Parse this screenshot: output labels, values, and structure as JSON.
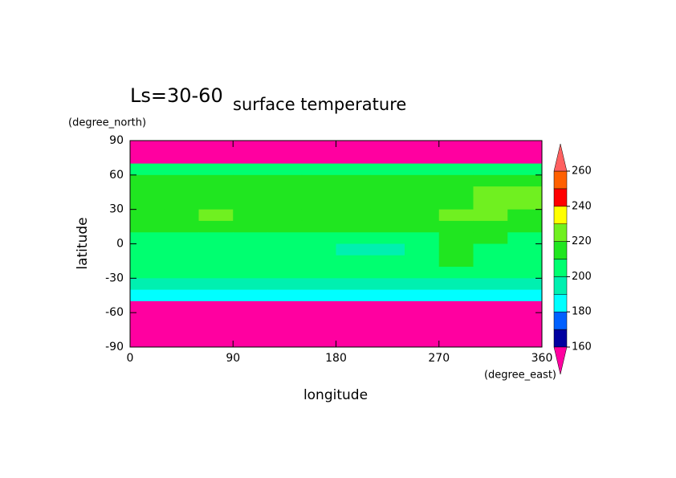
{
  "chart_data": {
    "type": "contour",
    "title": "surface temperature",
    "annotation": "Ls=30-60",
    "xlabel": "longitude",
    "ylabel": "latitude",
    "xunit": "(degree_east)",
    "yunit": "(degree_north)",
    "x": [
      15,
      45,
      75,
      105,
      135,
      165,
      195,
      225,
      255,
      285,
      315,
      345
    ],
    "y": [
      85,
      75,
      65,
      55,
      45,
      35,
      25,
      15,
      5,
      -5,
      -15,
      -25,
      -35,
      -45,
      -55,
      -65,
      -75,
      -85
    ],
    "values": [
      [
        150,
        150,
        150,
        150,
        150,
        150,
        150,
        150,
        150,
        150,
        150,
        150
      ],
      [
        155,
        155,
        155,
        155,
        155,
        155,
        155,
        155,
        155,
        155,
        155,
        155
      ],
      [
        205,
        205,
        205,
        205,
        205,
        205,
        205,
        205,
        205,
        205,
        205,
        205
      ],
      [
        212,
        212,
        215,
        212,
        212,
        212,
        212,
        212,
        212,
        212,
        215,
        212
      ],
      [
        212,
        212,
        212,
        212,
        212,
        212,
        212,
        212,
        212,
        212,
        222,
        222
      ],
      [
        212,
        215,
        215,
        212,
        212,
        212,
        212,
        212,
        212,
        212,
        222,
        222
      ],
      [
        212,
        215,
        225,
        212,
        212,
        212,
        212,
        212,
        212,
        222,
        222,
        212
      ],
      [
        215,
        215,
        215,
        215,
        212,
        212,
        212,
        212,
        212,
        215,
        215,
        215
      ],
      [
        208,
        208,
        208,
        208,
        208,
        208,
        208,
        208,
        208,
        212,
        212,
        208
      ],
      [
        205,
        205,
        205,
        205,
        205,
        205,
        198,
        198,
        205,
        212,
        205,
        205
      ],
      [
        205,
        205,
        205,
        205,
        205,
        205,
        205,
        205,
        205,
        212,
        205,
        205
      ],
      [
        202,
        202,
        202,
        202,
        202,
        202,
        202,
        202,
        202,
        202,
        202,
        202
      ],
      [
        195,
        195,
        195,
        195,
        195,
        195,
        195,
        195,
        195,
        195,
        195,
        195
      ],
      [
        185,
        185,
        185,
        185,
        185,
        185,
        185,
        185,
        185,
        185,
        185,
        185
      ],
      [
        158,
        158,
        158,
        158,
        158,
        158,
        158,
        158,
        158,
        158,
        158,
        158
      ],
      [
        150,
        150,
        150,
        150,
        150,
        150,
        150,
        150,
        150,
        150,
        150,
        150
      ],
      [
        150,
        150,
        150,
        150,
        150,
        150,
        150,
        150,
        150,
        150,
        150,
        150
      ],
      [
        150,
        150,
        150,
        150,
        150,
        150,
        150,
        150,
        150,
        150,
        150,
        150
      ]
    ],
    "xlim": [
      0,
      360
    ],
    "ylim": [
      -90,
      90
    ],
    "xticks": [
      0,
      90,
      180,
      270,
      360
    ],
    "yticks": [
      90,
      60,
      30,
      0,
      -30,
      -60,
      -90
    ],
    "levels": [
      160,
      170,
      180,
      190,
      200,
      210,
      220,
      230,
      240,
      250,
      260
    ],
    "colorbar_ticks": [
      160,
      180,
      200,
      220,
      240,
      260
    ],
    "colors": [
      "#ff00a0",
      "#0000a0",
      "#0060ff",
      "#00ffff",
      "#00f0b0",
      "#00ff70",
      "#20e620",
      "#70f020",
      "#ffff00",
      "#ff0000",
      "#ff6000",
      "#ff6060"
    ]
  }
}
